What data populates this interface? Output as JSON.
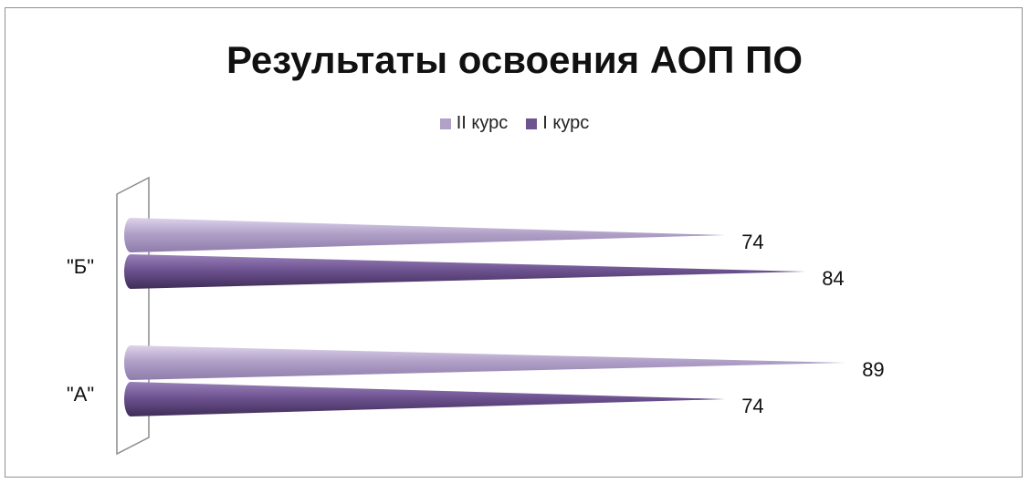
{
  "chart_data": {
    "type": "bar",
    "orientation": "horizontal",
    "style": "3d-cone",
    "title": "Результаты освоения АОП ПО",
    "categories": [
      "\"А\"",
      "\"Б\""
    ],
    "series": [
      {
        "name": "I курс",
        "values": [
          74,
          84
        ],
        "color": "#6e5391"
      },
      {
        "name": "II курс",
        "values": [
          89,
          74
        ],
        "color": "#b1a1c8"
      }
    ],
    "legend_order": [
      "II курс",
      "I курс"
    ],
    "legend_position": "top",
    "xlim": [
      0,
      100
    ],
    "grid": false,
    "data_labels": true
  }
}
